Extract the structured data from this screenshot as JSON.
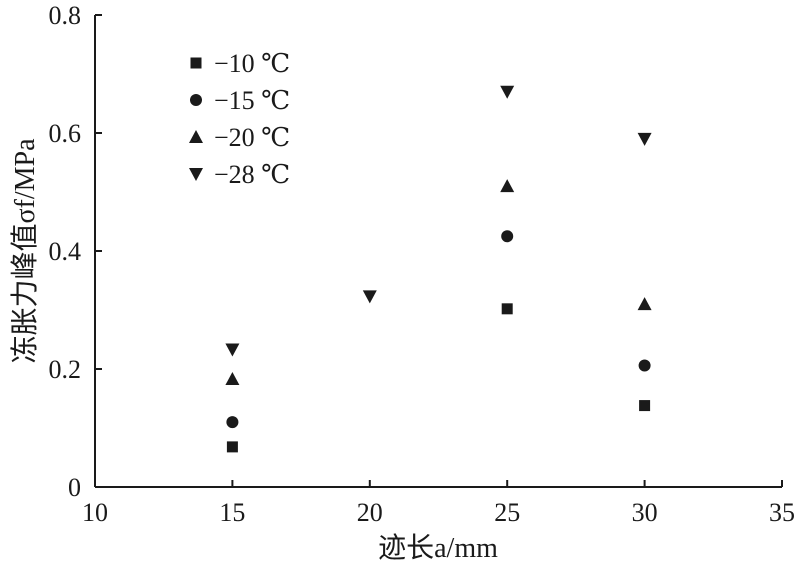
{
  "chart_data": {
    "type": "scatter",
    "xlabel": "迹长a/mm",
    "ylabel": "冻胀力峰值σf/MPa",
    "xlim": [
      10,
      35
    ],
    "ylim": [
      0,
      0.8
    ],
    "x_ticks": [
      "10",
      "15",
      "20",
      "25",
      "30",
      "35"
    ],
    "y_ticks": [
      "0",
      "0.2",
      "0.4",
      "0.6",
      "0.8"
    ],
    "grid": false,
    "legend_position": "top-left",
    "series": [
      {
        "name": "−10 ℃",
        "marker": "square",
        "x": [
          15,
          25,
          30
        ],
        "y": [
          0.068,
          0.302,
          0.138
        ]
      },
      {
        "name": "−15 ℃",
        "marker": "circle",
        "x": [
          15,
          25,
          30
        ],
        "y": [
          0.11,
          0.425,
          0.206
        ]
      },
      {
        "name": "−20 ℃",
        "marker": "triangle-up",
        "x": [
          15,
          25,
          30
        ],
        "y": [
          0.183,
          0.51,
          0.31
        ]
      },
      {
        "name": "−28 ℃",
        "marker": "triangle-down",
        "x": [
          15,
          20,
          25,
          30
        ],
        "y": [
          0.233,
          0.323,
          0.67,
          0.59
        ]
      }
    ]
  },
  "colors": {
    "ink": "#1a1a1a",
    "background": "#ffffff"
  }
}
